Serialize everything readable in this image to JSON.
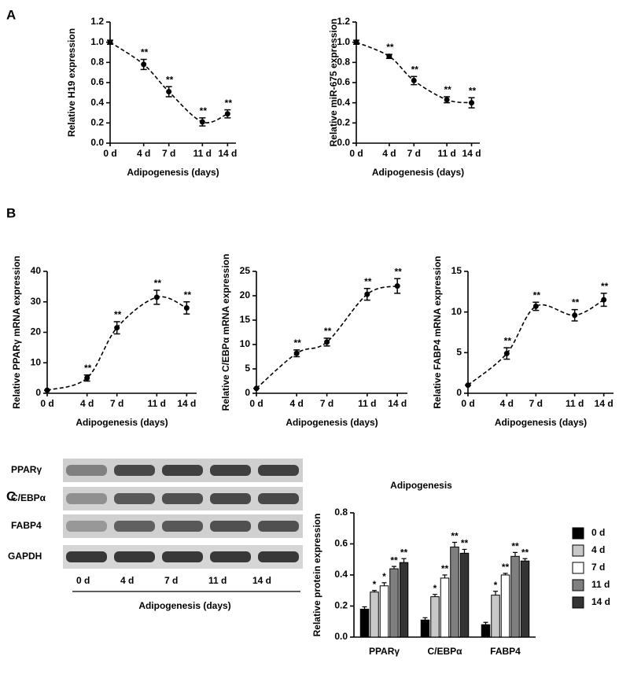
{
  "panels": [
    "A",
    "B",
    "C"
  ],
  "blot": {
    "rows": [
      "PPARγ",
      "C/EBPα",
      "FABP4",
      "GAPDH"
    ],
    "lanes": [
      "0 d",
      "4 d",
      "7 d",
      "11 d",
      "14 d"
    ],
    "xlabel": "Adipogenesis (days)"
  },
  "chart_data": [
    {
      "type": "line",
      "ylabel": "Relative H19 expression",
      "xlabel": "Adipogenesis (days)",
      "color": "#000000",
      "x": [
        0,
        4,
        7,
        11,
        14
      ],
      "values": [
        1.0,
        0.78,
        0.51,
        0.21,
        0.29
      ],
      "errors": [
        0.02,
        0.05,
        0.05,
        0.04,
        0.04
      ],
      "significance": [
        null,
        "**",
        "**",
        "**",
        "**"
      ],
      "xlim": [
        0,
        15
      ],
      "xticks": [
        {
          "value": 0,
          "label": "0 d"
        },
        {
          "value": 4,
          "label": "4 d"
        },
        {
          "value": 7,
          "label": "7 d"
        },
        {
          "value": 11,
          "label": "11 d"
        },
        {
          "value": 14,
          "label": "14 d"
        }
      ],
      "ylim": [
        0,
        1.2
      ],
      "yticks": [
        {
          "value": 0,
          "label": "0.0"
        },
        0.2,
        0.4,
        0.6,
        0.8,
        {
          "value": 1,
          "label": "1.0"
        },
        1.2
      ]
    },
    {
      "type": "line",
      "ylabel": "Relative miR-675 expression",
      "xlabel": "Adipogenesis (days)",
      "color": "#000000",
      "x": [
        0,
        4,
        7,
        11,
        14
      ],
      "values": [
        1.0,
        0.86,
        0.62,
        0.43,
        0.4
      ],
      "errors": [
        0.02,
        0.02,
        0.04,
        0.03,
        0.05
      ],
      "significance": [
        null,
        "**",
        "**",
        "**",
        "**"
      ],
      "xlim": [
        0,
        15
      ],
      "xticks": [
        {
          "value": 0,
          "label": "0 d"
        },
        {
          "value": 4,
          "label": "4 d"
        },
        {
          "value": 7,
          "label": "7 d"
        },
        {
          "value": 11,
          "label": "11 d"
        },
        {
          "value": 14,
          "label": "14 d"
        }
      ],
      "ylim": [
        0,
        1.2
      ],
      "yticks": [
        {
          "value": 0,
          "label": "0.0"
        },
        0.2,
        0.4,
        0.6,
        0.8,
        {
          "value": 1,
          "label": "1.0"
        },
        1.2
      ]
    },
    {
      "type": "line",
      "ylabel": "Relative PPARγ mRNA expression",
      "xlabel": "Adipogenesis (days)",
      "color": "#000000",
      "x": [
        0,
        4,
        7,
        11,
        14
      ],
      "values": [
        1,
        5,
        21.5,
        31.5,
        28
      ],
      "errors": [
        0,
        1,
        2,
        2.3,
        2
      ],
      "significance": [
        null,
        "**",
        "**",
        "**",
        "**"
      ],
      "xlim": [
        0,
        15
      ],
      "xticks": [
        {
          "value": 0,
          "label": "0 d"
        },
        {
          "value": 4,
          "label": "4 d"
        },
        {
          "value": 7,
          "label": "7 d"
        },
        {
          "value": 11,
          "label": "11 d"
        },
        {
          "value": 14,
          "label": "14 d"
        }
      ],
      "ylim": [
        0,
        40
      ],
      "yticks": [
        0,
        10,
        20,
        30,
        40
      ]
    },
    {
      "type": "line",
      "ylabel": "Relative C/EBPα mRNA expression",
      "xlabel": "Adipogenesis (days)",
      "color": "#000000",
      "x": [
        0,
        4,
        7,
        11,
        14
      ],
      "values": [
        1,
        8.2,
        10.5,
        20.3,
        22
      ],
      "errors": [
        0,
        0.7,
        0.8,
        1.2,
        1.5
      ],
      "significance": [
        null,
        "**",
        "**",
        "**",
        "**"
      ],
      "xlim": [
        0,
        15
      ],
      "xticks": [
        {
          "value": 0,
          "label": "0 d"
        },
        {
          "value": 4,
          "label": "4 d"
        },
        {
          "value": 7,
          "label": "7 d"
        },
        {
          "value": 11,
          "label": "11 d"
        },
        {
          "value": 14,
          "label": "14 d"
        }
      ],
      "ylim": [
        0,
        25
      ],
      "yticks": [
        0,
        5,
        10,
        15,
        20,
        25
      ]
    },
    {
      "type": "line",
      "ylabel": "Relative FABP4 mRNA expression",
      "xlabel": "Adipogenesis (days)",
      "color": "#000000",
      "x": [
        0,
        4,
        7,
        11,
        14
      ],
      "values": [
        1,
        4.9,
        10.7,
        9.6,
        11.5
      ],
      "errors": [
        0,
        0.7,
        0.5,
        0.7,
        0.8
      ],
      "significance": [
        null,
        "**",
        "**",
        "**",
        "**"
      ],
      "xlim": [
        0,
        15
      ],
      "xticks": [
        {
          "value": 0,
          "label": "0 d"
        },
        {
          "value": 4,
          "label": "4 d"
        },
        {
          "value": 7,
          "label": "7 d"
        },
        {
          "value": 11,
          "label": "11 d"
        },
        {
          "value": 14,
          "label": "14 d"
        }
      ],
      "ylim": [
        0,
        15
      ],
      "yticks": [
        0,
        5,
        10,
        15
      ]
    },
    {
      "type": "bar",
      "title": "Adipogenesis",
      "ylabel": "Relative protein expression",
      "legend": "right",
      "categories": [
        "PPARγ",
        "C/EBPα",
        "FABP4"
      ],
      "series": [
        {
          "name": "0 d",
          "color": "#000000",
          "values": [
            0.18,
            0.11,
            0.08
          ],
          "errors": [
            0.015,
            0.015,
            0.015
          ],
          "significance": [
            null,
            null,
            null
          ]
        },
        {
          "name": "4 d",
          "color": "#c8c8c8",
          "values": [
            0.29,
            0.26,
            0.27
          ],
          "errors": [
            0.01,
            0.015,
            0.025
          ],
          "significance": [
            "*",
            "*",
            "*"
          ]
        },
        {
          "name": "7 d",
          "color": "#ffffff",
          "values": [
            0.33,
            0.38,
            0.4
          ],
          "errors": [
            0.02,
            0.02,
            0.01
          ],
          "significance": [
            "*",
            "**",
            "**"
          ]
        },
        {
          "name": "11 d",
          "color": "#7f7f7f",
          "values": [
            0.44,
            0.58,
            0.52
          ],
          "errors": [
            0.015,
            0.03,
            0.025
          ],
          "significance": [
            "**",
            "**",
            "**"
          ]
        },
        {
          "name": "14 d",
          "color": "#333333",
          "values": [
            0.48,
            0.54,
            0.49
          ],
          "errors": [
            0.025,
            0.025,
            0.015
          ],
          "significance": [
            "**",
            "**",
            "**"
          ]
        }
      ],
      "ylim": [
        0,
        0.8
      ],
      "yticks": [
        {
          "value": 0,
          "label": "0.0"
        },
        0.2,
        0.4,
        0.6,
        0.8
      ]
    }
  ]
}
